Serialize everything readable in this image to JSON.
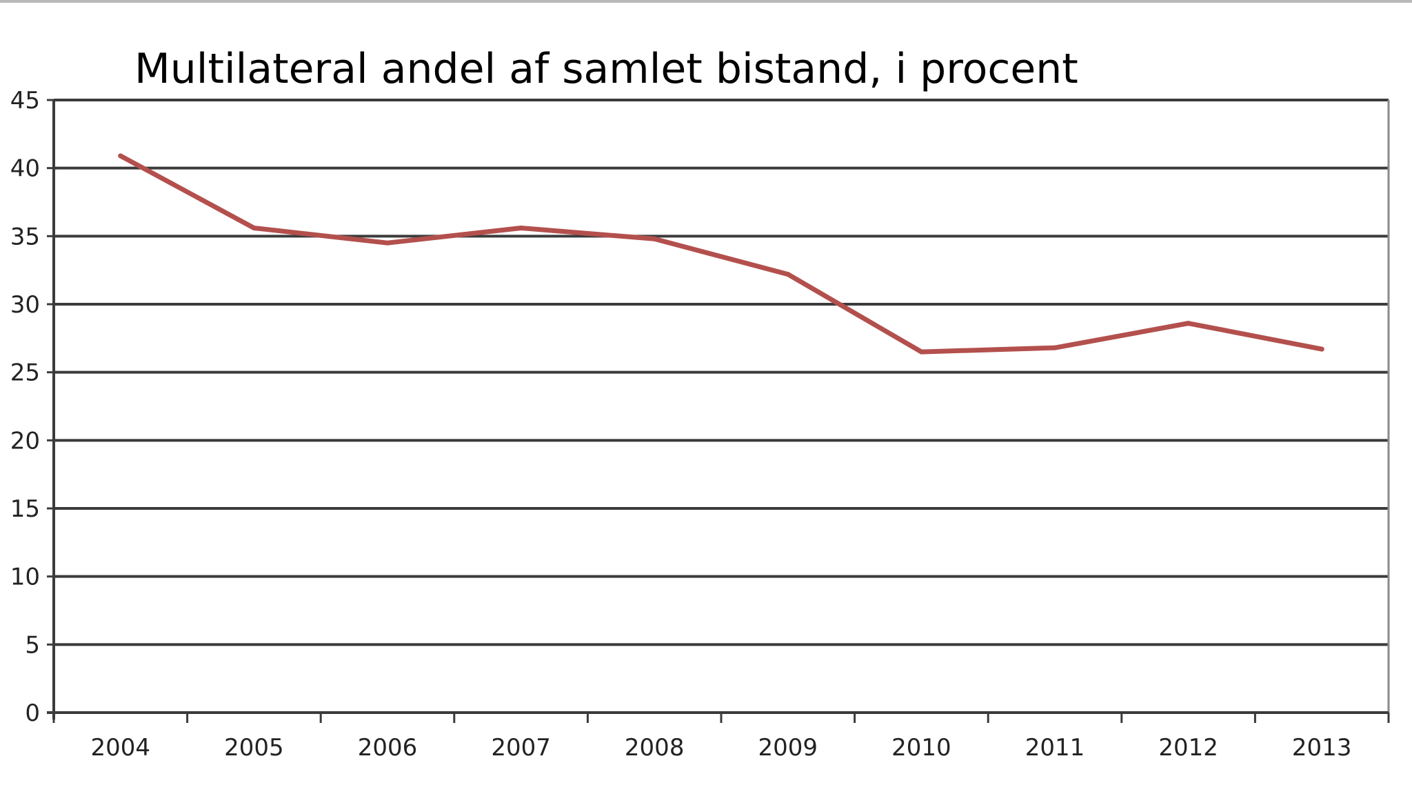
{
  "chart_data": {
    "type": "line",
    "title": "Multilateral andel af samlet bistand, i procent",
    "xlabel": "",
    "ylabel": "",
    "categories": [
      "2004",
      "2005",
      "2006",
      "2007",
      "2008",
      "2009",
      "2010",
      "2011",
      "2012",
      "2013"
    ],
    "series": [
      {
        "values": [
          40.9,
          35.6,
          34.5,
          35.6,
          34.8,
          32.2,
          26.5,
          26.8,
          28.6,
          26.7
        ],
        "color": "#b3504d"
      }
    ],
    "ylim": [
      0,
      45
    ],
    "yticks": [
      "0",
      "5",
      "10",
      "15",
      "20",
      "25",
      "30",
      "35",
      "40",
      "45"
    ],
    "grid": true,
    "legend": "none"
  }
}
